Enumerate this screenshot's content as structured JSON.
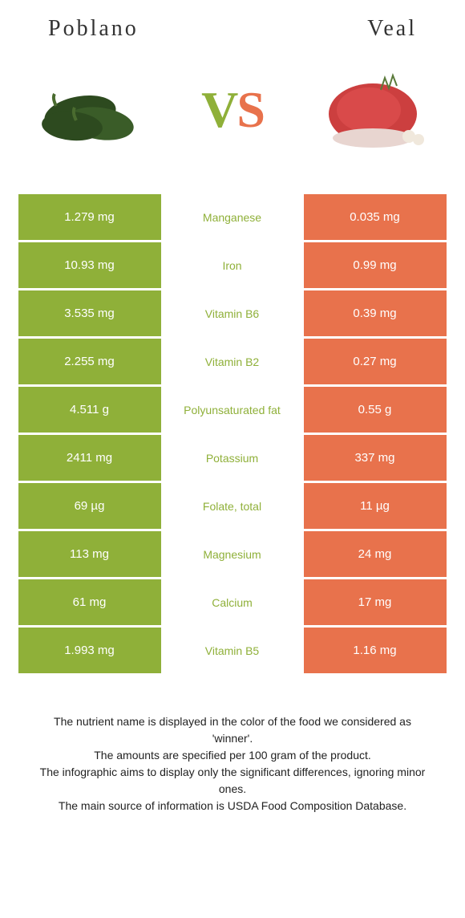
{
  "header": {
    "food1": "Poblano",
    "food2": "Veal"
  },
  "colors": {
    "left_bg": "#8fb039",
    "right_bg": "#e8724c",
    "winner_left_text": "#8fb039",
    "winner_right_text": "#e8724c"
  },
  "rows": [
    {
      "left": "1.279 mg",
      "label": "Manganese",
      "right": "0.035 mg",
      "winner": "left"
    },
    {
      "left": "10.93 mg",
      "label": "Iron",
      "right": "0.99 mg",
      "winner": "left"
    },
    {
      "left": "3.535 mg",
      "label": "Vitamin B6",
      "right": "0.39 mg",
      "winner": "left"
    },
    {
      "left": "2.255 mg",
      "label": "Vitamin B2",
      "right": "0.27 mg",
      "winner": "left"
    },
    {
      "left": "4.511 g",
      "label": "Polyunsaturated fat",
      "right": "0.55 g",
      "winner": "left"
    },
    {
      "left": "2411 mg",
      "label": "Potassium",
      "right": "337 mg",
      "winner": "left"
    },
    {
      "left": "69 µg",
      "label": "Folate, total",
      "right": "11 µg",
      "winner": "left"
    },
    {
      "left": "113 mg",
      "label": "Magnesium",
      "right": "24 mg",
      "winner": "left"
    },
    {
      "left": "61 mg",
      "label": "Calcium",
      "right": "17 mg",
      "winner": "left"
    },
    {
      "left": "1.993 mg",
      "label": "Vitamin B5",
      "right": "1.16 mg",
      "winner": "left"
    }
  ],
  "footnotes": [
    "The nutrient name is displayed in the color of the food we considered as 'winner'.",
    "The amounts are specified per 100 gram of the product.",
    "The infographic aims to display only the significant differences, ignoring minor ones.",
    "The main source of information is USDA Food Composition Database."
  ]
}
